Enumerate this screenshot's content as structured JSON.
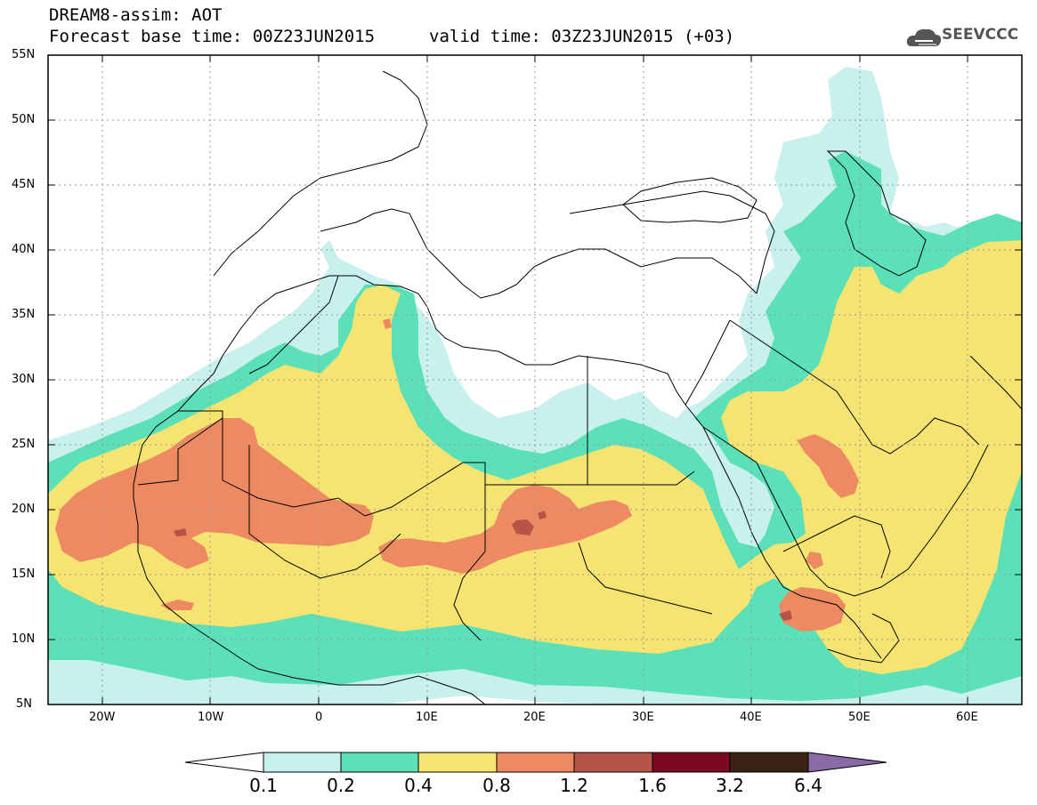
{
  "header": {
    "title_line1": "DREAM8-assim: AOT",
    "title_line2": "Forecast base time: 00Z23JUN2015",
    "valid_time": "valid time: 03Z23JUN2015 (+03)"
  },
  "logo": {
    "text": "SEEVCCC",
    "icon": "cloud-logo-icon"
  },
  "map": {
    "lon_range": [
      -25,
      65
    ],
    "lat_range": [
      5,
      55
    ],
    "lat_ticks": [
      "5N",
      "10N",
      "15N",
      "20N",
      "25N",
      "30N",
      "35N",
      "40N",
      "45N",
      "50N",
      "55N"
    ],
    "lon_ticks": [
      "20W",
      "10W",
      "0",
      "10E",
      "20E",
      "30E",
      "40E",
      "50E",
      "60E"
    ],
    "grid": true
  },
  "colorbar": {
    "labels": [
      "0.1",
      "0.2",
      "0.4",
      "0.8",
      "1.2",
      "1.6",
      "3.2",
      "6.4"
    ],
    "colors": {
      "c1": "#c8f0ec",
      "c2": "#5ce0b8",
      "c3": "#f5e472",
      "c4": "#ee8a62",
      "c5": "#b55447",
      "c6": "#7a0a22",
      "c7": "#3a2214",
      "c8": "#8b6aa8"
    }
  }
}
